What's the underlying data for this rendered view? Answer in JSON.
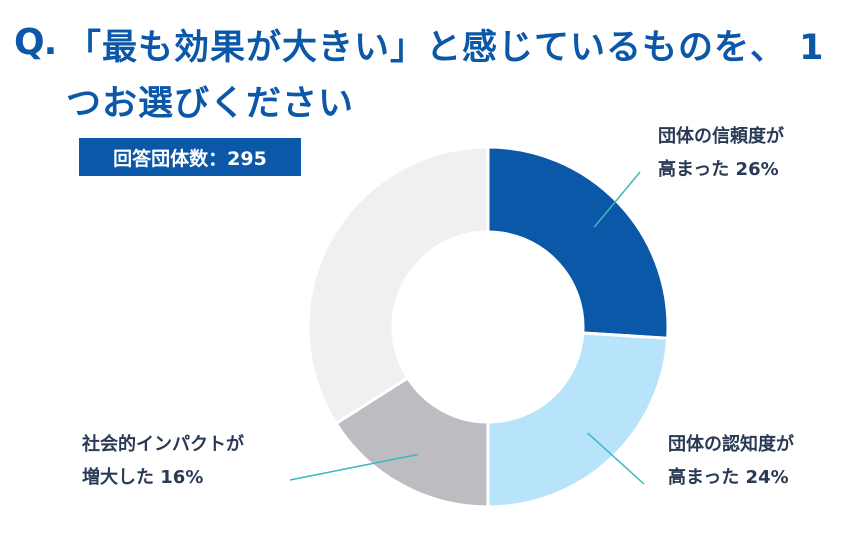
{
  "header": {
    "q_mark": "Q.",
    "title": "「最も効果が大きい」と感じているものを、 1つお選びください"
  },
  "badge": {
    "text": "回答団体数：295"
  },
  "chart_data": {
    "type": "pie",
    "donut": true,
    "start": "12 o'clock, clockwise",
    "slices": [
      {
        "line1": "団体の信頼度が",
        "line2": "高まった 26%",
        "value": 26,
        "color": "#0b57a8"
      },
      {
        "line1": "団体の認知度が",
        "line2": "高まった 24%",
        "value": 24,
        "color": "#b7e3fb"
      },
      {
        "line1": "社会的インパクトが",
        "line2": "増大した 16%",
        "value": 16,
        "color": "#bcbcc1"
      },
      {
        "value": 34,
        "color": "#f0f0f3"
      }
    ],
    "leader_line_color": "#3cb8c0"
  }
}
